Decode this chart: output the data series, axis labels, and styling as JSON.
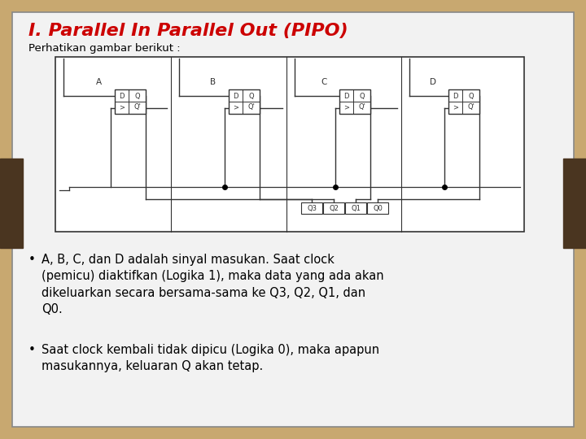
{
  "title": "I. Parallel In Parallel Out (PIPO)",
  "subtitle": "Perhatikan gambar berikut :",
  "title_color": "#cc0000",
  "subtitle_color": "#000000",
  "bg_outer": "#c8a870",
  "bg_inner": "#f2f2f2",
  "bullet1": "A, B, C, dan D adalah sinyal masukan. Saat clock\n(pemicu) diaktifkan (Logika 1), maka data yang ada akan\ndikeluarkan secara bersama-sama ke Q3, Q2, Q1, dan\nQ0.",
  "bullet2": "Saat clock kembali tidak dipicu (Logika 0), maka apapun\nmasukannya, keluaran Q akan tetap.",
  "text_color": "#000000",
  "ff_labels": [
    "A",
    "B",
    "C",
    "D"
  ],
  "output_labels": [
    "Q3",
    "Q2",
    "Q1",
    "Q0"
  ],
  "card_border_color": "#888888",
  "side_bar_color": "#4a3520",
  "diagram_line_color": "#333333"
}
